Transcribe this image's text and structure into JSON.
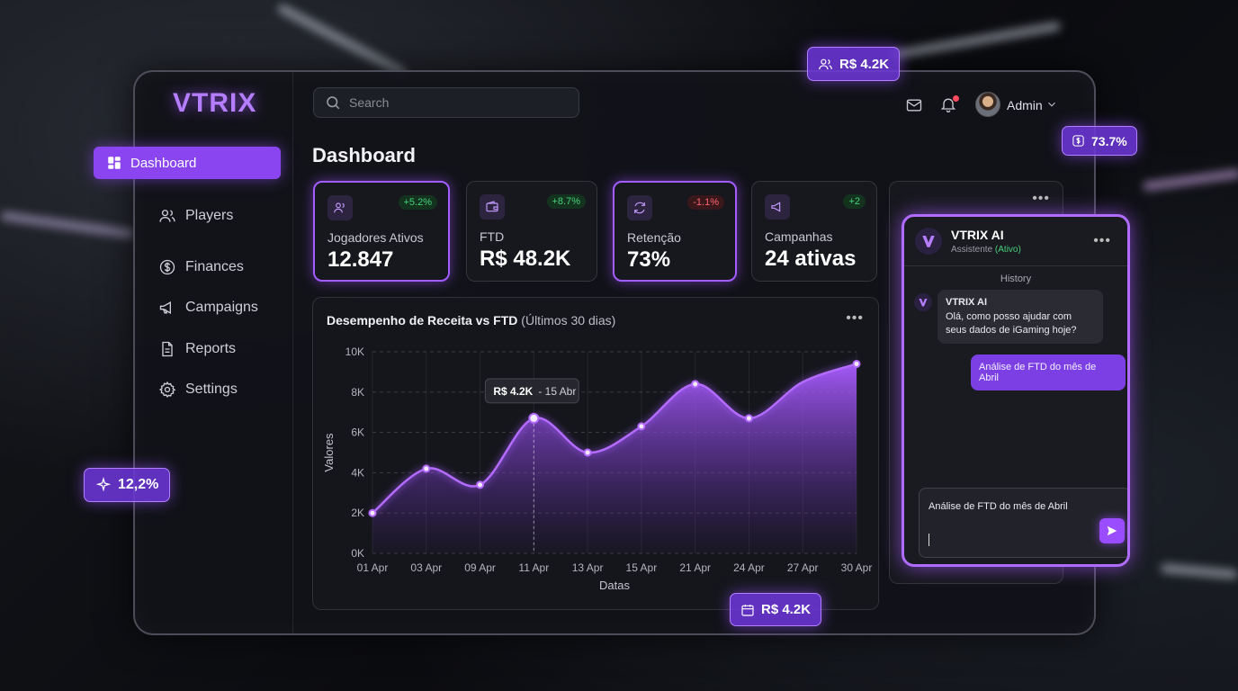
{
  "brand": {
    "logo": "VTRIX",
    "accent": "#a35cff"
  },
  "sidebar": {
    "items": [
      {
        "label": "Dashboard",
        "icon": "dashboard-icon",
        "active": true
      },
      {
        "label": "Players",
        "icon": "users-icon"
      },
      {
        "label": "Finances",
        "icon": "dollar-icon"
      },
      {
        "label": "Campaigns",
        "icon": "megaphone-icon"
      },
      {
        "label": "Reports",
        "icon": "document-icon"
      },
      {
        "label": "Settings",
        "icon": "gear-icon"
      }
    ]
  },
  "topbar": {
    "search_placeholder": "Search",
    "user_name": "Admin",
    "icons": [
      "mail-icon",
      "bell-icon",
      "chevron-down-icon"
    ]
  },
  "page": {
    "title": "Dashboard"
  },
  "stats": [
    {
      "label": "Jogadores Ativos",
      "value": "12.847",
      "delta": "+5.2%",
      "trend": "up",
      "icon": "users-icon"
    },
    {
      "label": "FTD",
      "value": "R$ 48.2K",
      "delta": "+8.7%",
      "trend": "up",
      "icon": "wallet-icon"
    },
    {
      "label": "Retenção",
      "value": "73%",
      "delta": "-1.1%",
      "trend": "down",
      "icon": "refresh-icon"
    },
    {
      "label": "Campanhas",
      "value": "24 ativas",
      "delta": "+2",
      "trend": "up",
      "icon": "megaphone-icon"
    }
  ],
  "chart": {
    "title": "Desempenho de Receita vs FTD",
    "subtitle": "(Últimos 30 dias)",
    "tooltip_value": "R$ 4.2K",
    "tooltip_date": "- 15 Abr"
  },
  "chart_data": {
    "type": "area",
    "title": "Desempenho de Receita vs FTD (Últimos 30 dias)",
    "xlabel": "Datas",
    "ylabel": "Valores",
    "ylim": [
      0,
      10000
    ],
    "yticks": [
      "0K",
      "2K",
      "4K",
      "6K",
      "8K",
      "10K"
    ],
    "categories": [
      "01 Apr",
      "03 Apr",
      "09 Apr",
      "11 Apr",
      "13 Apr",
      "15 Apr",
      "21 Apr",
      "24 Apr",
      "27 Apr",
      "30 Apr"
    ],
    "values": [
      2000,
      4200,
      3400,
      6700,
      5000,
      6300,
      8400,
      6700,
      8500,
      9400
    ],
    "point_ticks": [
      0,
      1,
      2,
      3,
      4,
      5,
      6,
      7,
      9
    ],
    "highlight_index": 3,
    "grid": true,
    "color": "#a35cff"
  },
  "assistant": {
    "name": "VTRIX AI",
    "status_prefix": "Assistente",
    "status": "(Ativo)",
    "history_label": "History",
    "ai_sender": "VTRIX AI",
    "ai_message": "Olá, como posso ajudar com seus dados de iGaming hoje?",
    "user_message": "Análise de FTD do mês de Abril",
    "input_value": "Análise de FTD do mês de Abril"
  },
  "floating": {
    "players_pill": "R$ 4.2K",
    "rate_pill": "73.7%",
    "growth_pill": "12,2%",
    "ftd_pill": "R$ 4.2K"
  }
}
